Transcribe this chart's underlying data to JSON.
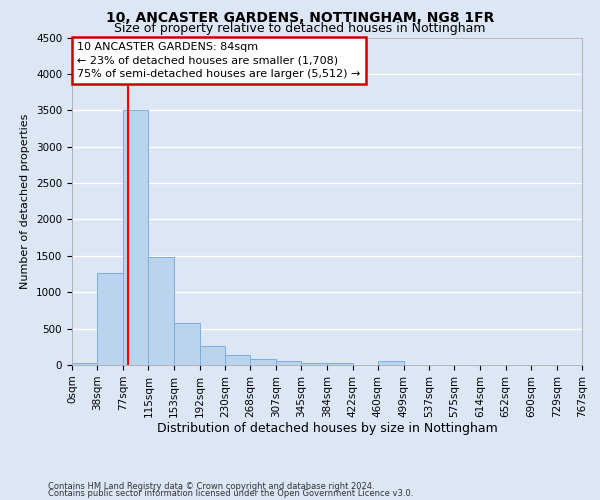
{
  "title1": "10, ANCASTER GARDENS, NOTTINGHAM, NG8 1FR",
  "title2": "Size of property relative to detached houses in Nottingham",
  "xlabel": "Distribution of detached houses by size in Nottingham",
  "ylabel": "Number of detached properties",
  "footnote1": "Contains HM Land Registry data © Crown copyright and database right 2024.",
  "footnote2": "Contains public sector information licensed under the Open Government Licence v3.0.",
  "bar_edges": [
    0,
    38,
    77,
    115,
    153,
    192,
    230,
    268,
    307,
    345,
    384,
    422,
    460,
    499,
    537,
    575,
    614,
    652,
    690,
    729,
    767
  ],
  "bar_heights": [
    30,
    1270,
    3500,
    1480,
    580,
    255,
    135,
    80,
    50,
    30,
    25,
    0,
    50,
    0,
    0,
    0,
    0,
    0,
    0,
    0
  ],
  "bar_color": "#bad4ee",
  "bar_edge_color": "#7aade0",
  "red_line_x": 84,
  "annotation_line1": "10 ANCASTER GARDENS: 84sqm",
  "annotation_line2": "← 23% of detached houses are smaller (1,708)",
  "annotation_line3": "75% of semi-detached houses are larger (5,512) →",
  "annotation_box_color": "#ffffff",
  "annotation_box_edge_color": "#cc0000",
  "ylim": [
    0,
    4500
  ],
  "yticks": [
    0,
    500,
    1000,
    1500,
    2000,
    2500,
    3000,
    3500,
    4000,
    4500
  ],
  "bg_color": "#dce6f5",
  "plot_bg_color": "#dce6f5",
  "grid_color": "#ffffff",
  "tick_label_fontsize": 7.5,
  "ylabel_fontsize": 8,
  "xlabel_fontsize": 9,
  "title1_fontsize": 10,
  "title2_fontsize": 9,
  "annotation_fontsize": 8,
  "footnote_fontsize": 6
}
